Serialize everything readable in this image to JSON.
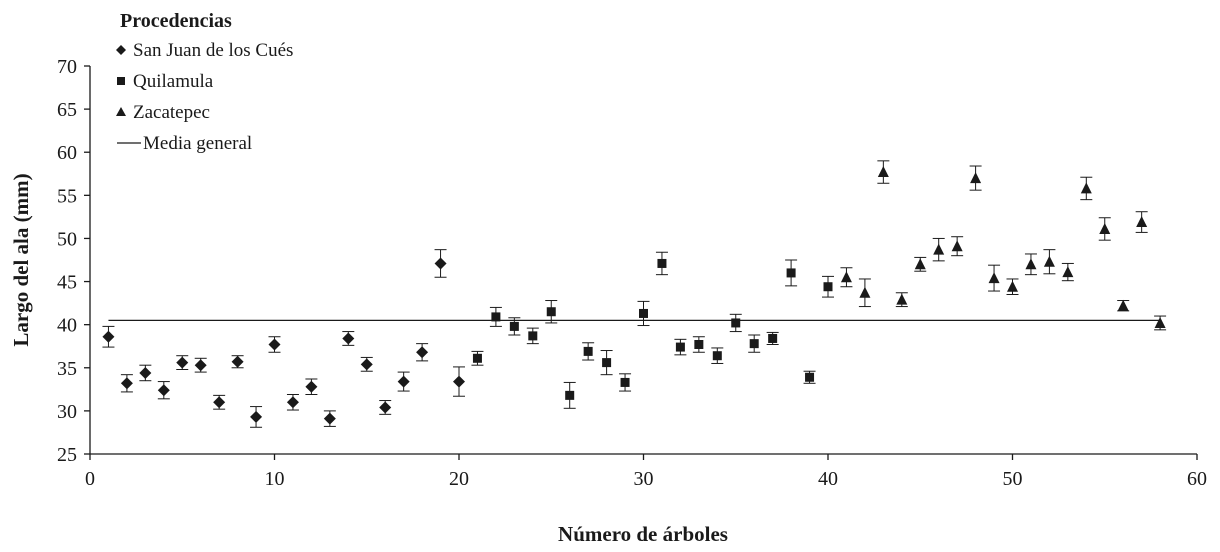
{
  "chart_data": {
    "type": "scatter",
    "xlabel": "Número de árboles",
    "ylabel": "Largo del ala (mm)",
    "xlim": [
      0,
      60
    ],
    "ylim": [
      25,
      70
    ],
    "xticks": [
      "0",
      "10",
      "20",
      "30",
      "40",
      "50",
      "60"
    ],
    "yticks": [
      "25",
      "30",
      "35",
      "40",
      "45",
      "50",
      "55",
      "60",
      "65",
      "70"
    ],
    "grid": false,
    "legend": {
      "title": "Procedencias",
      "placement": "top-left",
      "entries": [
        {
          "label": "San Juan de los Cués",
          "marker": "diamond"
        },
        {
          "label": "Quilamula",
          "marker": "square"
        },
        {
          "label": "Zacatepec",
          "marker": "triangle"
        },
        {
          "label": "Media general",
          "marker": "line"
        }
      ]
    },
    "mean_line": {
      "label": "Media general",
      "y": 40.5
    },
    "series": [
      {
        "name": "San Juan de los Cués",
        "marker": "diamond",
        "points": [
          {
            "x": 1,
            "y": 38.6,
            "err": 1.2
          },
          {
            "x": 2,
            "y": 33.2,
            "err": 1.0
          },
          {
            "x": 3,
            "y": 34.4,
            "err": 0.9
          },
          {
            "x": 4,
            "y": 32.4,
            "err": 1.0
          },
          {
            "x": 5,
            "y": 35.6,
            "err": 0.8
          },
          {
            "x": 6,
            "y": 35.3,
            "err": 0.8
          },
          {
            "x": 7,
            "y": 31.0,
            "err": 0.8
          },
          {
            "x": 8,
            "y": 35.7,
            "err": 0.7
          },
          {
            "x": 9,
            "y": 29.3,
            "err": 1.2
          },
          {
            "x": 10,
            "y": 37.7,
            "err": 0.9
          },
          {
            "x": 11,
            "y": 31.0,
            "err": 0.9
          },
          {
            "x": 12,
            "y": 32.8,
            "err": 0.9
          },
          {
            "x": 13,
            "y": 29.1,
            "err": 0.9
          },
          {
            "x": 14,
            "y": 38.4,
            "err": 0.8
          },
          {
            "x": 15,
            "y": 35.4,
            "err": 0.8
          },
          {
            "x": 16,
            "y": 30.4,
            "err": 0.8
          },
          {
            "x": 17,
            "y": 33.4,
            "err": 1.1
          },
          {
            "x": 18,
            "y": 36.8,
            "err": 1.0
          },
          {
            "x": 19,
            "y": 47.1,
            "err": 1.6
          },
          {
            "x": 20,
            "y": 33.4,
            "err": 1.7
          }
        ]
      },
      {
        "name": "Quilamula",
        "marker": "square",
        "points": [
          {
            "x": 21,
            "y": 36.1,
            "err": 0.8
          },
          {
            "x": 22,
            "y": 40.9,
            "err": 1.1
          },
          {
            "x": 23,
            "y": 39.8,
            "err": 1.0
          },
          {
            "x": 24,
            "y": 38.7,
            "err": 0.9
          },
          {
            "x": 25,
            "y": 41.5,
            "err": 1.3
          },
          {
            "x": 26,
            "y": 31.8,
            "err": 1.5
          },
          {
            "x": 27,
            "y": 36.9,
            "err": 1.0
          },
          {
            "x": 28,
            "y": 35.6,
            "err": 1.4
          },
          {
            "x": 29,
            "y": 33.3,
            "err": 1.0
          },
          {
            "x": 30,
            "y": 41.3,
            "err": 1.4
          },
          {
            "x": 31,
            "y": 47.1,
            "err": 1.3
          },
          {
            "x": 32,
            "y": 37.4,
            "err": 0.9
          },
          {
            "x": 33,
            "y": 37.7,
            "err": 0.9
          },
          {
            "x": 34,
            "y": 36.4,
            "err": 0.9
          },
          {
            "x": 35,
            "y": 40.2,
            "err": 1.0
          },
          {
            "x": 36,
            "y": 37.8,
            "err": 1.0
          },
          {
            "x": 37,
            "y": 38.4,
            "err": 0.7
          },
          {
            "x": 38,
            "y": 46.0,
            "err": 1.5
          },
          {
            "x": 39,
            "y": 33.9,
            "err": 0.7
          },
          {
            "x": 40,
            "y": 44.4,
            "err": 1.2
          }
        ]
      },
      {
        "name": "Zacatepec",
        "marker": "triangle",
        "points": [
          {
            "x": 41,
            "y": 45.5,
            "err": 1.1
          },
          {
            "x": 42,
            "y": 43.7,
            "err": 1.6
          },
          {
            "x": 43,
            "y": 57.7,
            "err": 1.3
          },
          {
            "x": 44,
            "y": 42.9,
            "err": 0.8
          },
          {
            "x": 45,
            "y": 47.0,
            "err": 0.8
          },
          {
            "x": 46,
            "y": 48.7,
            "err": 1.3
          },
          {
            "x": 47,
            "y": 49.1,
            "err": 1.1
          },
          {
            "x": 48,
            "y": 57.0,
            "err": 1.4
          },
          {
            "x": 49,
            "y": 45.4,
            "err": 1.5
          },
          {
            "x": 50,
            "y": 44.4,
            "err": 0.9
          },
          {
            "x": 51,
            "y": 47.0,
            "err": 1.2
          },
          {
            "x": 52,
            "y": 47.3,
            "err": 1.4
          },
          {
            "x": 53,
            "y": 46.1,
            "err": 1.0
          },
          {
            "x": 54,
            "y": 55.8,
            "err": 1.3
          },
          {
            "x": 55,
            "y": 51.1,
            "err": 1.3
          },
          {
            "x": 56,
            "y": 42.2,
            "err": 0.6
          },
          {
            "x": 57,
            "y": 51.9,
            "err": 1.2
          },
          {
            "x": 58,
            "y": 40.2,
            "err": 0.8
          }
        ]
      }
    ]
  }
}
